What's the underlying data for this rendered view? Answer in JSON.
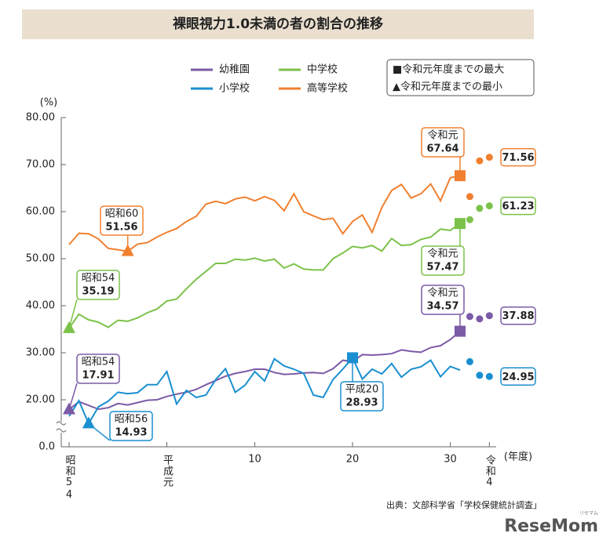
{
  "chart_data": {
    "type": "line",
    "title": "裸眼視力1.0未満の者の割合の推移",
    "y_label": "(%)",
    "x_label": "(年度)",
    "source": "出典：文部科学省「学校保健統計調査」",
    "logo": "ReseMom",
    "logo_sub": "リセマム",
    "categories": [
      "昭和54",
      null,
      null,
      null,
      null,
      null,
      null,
      null,
      null,
      null,
      "平成元",
      null,
      null,
      null,
      null,
      null,
      null,
      null,
      null,
      "10",
      null,
      null,
      null,
      null,
      null,
      null,
      null,
      null,
      null,
      "20",
      null,
      null,
      null,
      null,
      null,
      null,
      null,
      null,
      null,
      "30",
      null,
      null,
      null,
      "令和4"
    ],
    "ylim": [
      0,
      80
    ],
    "axis_break": [
      0,
      10
    ],
    "yticks": [
      {
        "value": 0,
        "label": "0.0"
      },
      {
        "value": 20,
        "label": "20.00"
      },
      {
        "value": 30,
        "label": "30.00"
      },
      {
        "value": 40,
        "label": "40.00"
      },
      {
        "value": 50,
        "label": "50.00"
      },
      {
        "value": 60,
        "label": "60.00"
      },
      {
        "value": 70,
        "label": "70.00"
      },
      {
        "value": 80,
        "label": "80.00"
      }
    ],
    "series": [
      {
        "name": "幼稚園",
        "color": "#7b5aa6",
        "values": [
          17.91,
          19.6,
          18.8,
          18.0,
          18.3,
          19.2,
          18.9,
          19.4,
          19.9,
          20.0,
          20.7,
          21.2,
          21.6,
          22.2,
          23.2,
          24.1,
          25.0,
          25.6,
          26.0,
          26.5,
          26.5,
          25.8,
          25.4,
          25.5,
          25.7,
          25.8,
          25.6,
          26.6,
          28.4,
          28.1,
          29.6,
          29.5,
          29.6,
          29.8,
          30.6,
          30.3,
          30.1,
          31.1,
          31.5,
          32.8,
          34.57,
          37.7,
          37.2,
          37.88
        ]
      },
      {
        "name": "中学校",
        "color": "#7cc24a",
        "values": [
          35.19,
          38.2,
          37.0,
          36.5,
          35.4,
          36.9,
          36.7,
          37.4,
          38.5,
          39.3,
          41.0,
          41.4,
          43.6,
          45.6,
          47.3,
          49.0,
          49.0,
          49.9,
          49.7,
          50.1,
          49.5,
          49.9,
          48.0,
          48.9,
          47.8,
          47.6,
          47.6,
          50.0,
          51.2,
          52.6,
          52.3,
          52.8,
          51.6,
          54.3,
          52.8,
          53.0,
          54.1,
          54.6,
          56.3,
          56.0,
          57.47,
          58.3,
          60.7,
          61.23
        ]
      },
      {
        "name": "小学校",
        "color": "#1a8fd0",
        "values": [
          16.5,
          19.8,
          14.93,
          18.5,
          19.7,
          21.6,
          21.3,
          21.5,
          23.2,
          23.2,
          26.0,
          19.1,
          22.0,
          20.5,
          21.0,
          24.3,
          26.6,
          21.6,
          23.1,
          26.0,
          24.0,
          28.7,
          27.2,
          26.5,
          25.6,
          21.0,
          20.5,
          24.3,
          26.5,
          28.93,
          24.4,
          26.5,
          25.5,
          27.7,
          24.8,
          26.5,
          27.0,
          28.4,
          24.9,
          27.1,
          26.3,
          28.1,
          25.2,
          24.95
        ]
      },
      {
        "name": "高等学校",
        "color": "#f08030",
        "values": [
          53.0,
          55.4,
          55.3,
          54.2,
          52.2,
          51.9,
          51.56,
          53.1,
          53.4,
          54.6,
          55.6,
          56.4,
          57.9,
          59.0,
          61.6,
          62.2,
          61.7,
          62.7,
          63.1,
          62.3,
          63.2,
          62.4,
          60.2,
          63.8,
          60.0,
          59.1,
          58.3,
          58.6,
          55.3,
          57.9,
          59.3,
          55.6,
          60.9,
          64.5,
          65.8,
          62.9,
          63.8,
          65.9,
          62.3,
          67.2,
          67.64,
          63.2,
          70.8,
          71.56
        ]
      }
    ],
    "annotations": [
      "昭和60",
      "令和元",
      "昭和54",
      "令和元",
      "令和元",
      "昭和54",
      "昭和56",
      "平成20"
    ],
    "legend_notes": [
      "■令和元年度までの最大",
      "▲令和元年度までの最小"
    ]
  }
}
